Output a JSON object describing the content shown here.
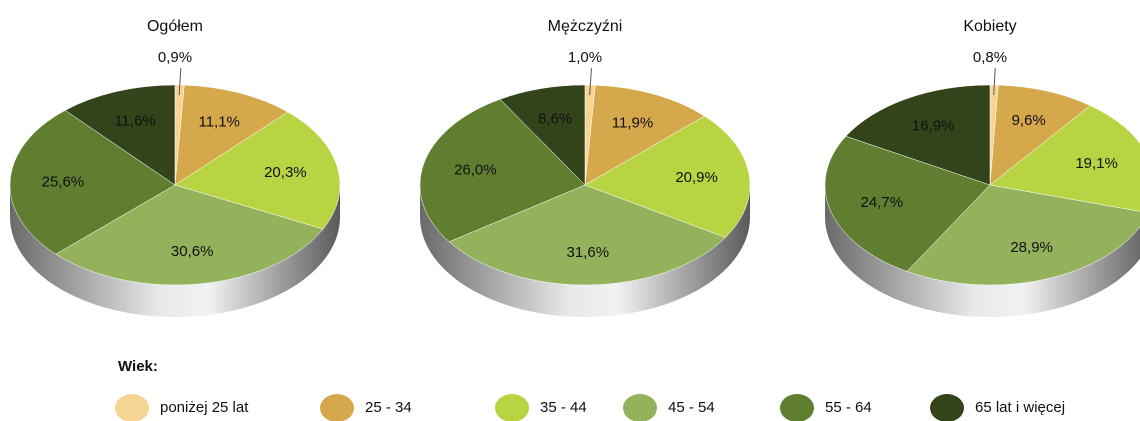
{
  "chart_data": [
    {
      "type": "pie",
      "title": "Ogółem",
      "categories": [
        "poniżej 25 lat",
        "25 - 34",
        "35 - 44",
        "45 - 54",
        "55 - 64",
        "65 lat i więcej"
      ],
      "values": [
        0.9,
        11.1,
        20.3,
        30.6,
        25.6,
        11.6
      ],
      "value_labels": [
        "0,9%",
        "11,1%",
        "20,3%",
        "30,6%",
        "25,6%",
        "11,6%"
      ],
      "colors": [
        "#f6d594",
        "#d6a84c",
        "#b8d443",
        "#93b25b",
        "#5f7e2f",
        "#33431a"
      ]
    },
    {
      "type": "pie",
      "title": "Mężczyźni",
      "categories": [
        "poniżej 25 lat",
        "25 - 34",
        "35 - 44",
        "45 - 54",
        "55 - 64",
        "65 lat i więcej"
      ],
      "values": [
        1.0,
        11.9,
        20.9,
        31.6,
        26.0,
        8.6
      ],
      "value_labels": [
        "1,0%",
        "11,9%",
        "20,9%",
        "31,6%",
        "26,0%",
        "8,6%"
      ],
      "colors": [
        "#f6d594",
        "#d6a84c",
        "#b8d443",
        "#93b25b",
        "#5f7e2f",
        "#33431a"
      ]
    },
    {
      "type": "pie",
      "title": "Kobiety",
      "categories": [
        "poniżej 25 lat",
        "25 - 34",
        "35 - 44",
        "45 - 54",
        "55 - 64",
        "65 lat i więcej"
      ],
      "values": [
        0.8,
        9.6,
        19.1,
        28.9,
        24.7,
        16.9
      ],
      "value_labels": [
        "0,8%",
        "9,6%",
        "19,1%",
        "28,9%",
        "24,7%",
        "16,9%"
      ],
      "colors": [
        "#f6d594",
        "#d6a84c",
        "#b8d443",
        "#93b25b",
        "#5f7e2f",
        "#33431a"
      ]
    }
  ],
  "legend": {
    "title": "Wiek:"
  }
}
